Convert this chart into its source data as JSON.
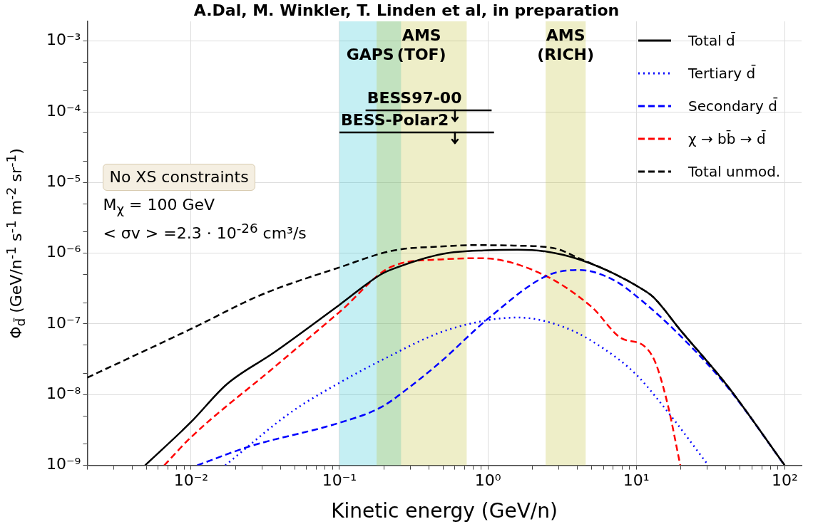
{
  "chart_data": {
    "type": "line",
    "title": "A.Dal, M. Winkler, T. Linden et al, in preparation",
    "xlabel": "Kinetic energy (GeV/n)",
    "ylabel": "Φ$_{d̄}$ (GeV/n$^{-1}$ s$^{-1}$ m$^{-2}$ sr$^{-1}$)",
    "log": "xy",
    "grid": true,
    "legend": "top right",
    "marker": "none",
    "xlim": [
      0.002,
      130
    ],
    "ylim": [
      1e-09,
      0.0019
    ],
    "xticks": [
      {
        "value": 0.002,
        "label": null
      },
      {
        "value": 0.003,
        "label": null
      },
      {
        "value": 0.004,
        "label": null
      },
      {
        "value": 0.005,
        "label": null
      },
      {
        "value": 0.006,
        "label": null
      },
      {
        "value": 0.007,
        "label": null
      },
      {
        "value": 0.008,
        "label": null
      },
      {
        "value": 0.009,
        "label": null
      },
      {
        "value": 0.01,
        "label": "10⁻²"
      },
      {
        "value": 0.02,
        "label": null
      },
      {
        "value": 0.03,
        "label": null
      },
      {
        "value": 0.04,
        "label": null
      },
      {
        "value": 0.05,
        "label": null
      },
      {
        "value": 0.06,
        "label": null
      },
      {
        "value": 0.07,
        "label": null
      },
      {
        "value": 0.08,
        "label": null
      },
      {
        "value": 0.09,
        "label": null
      },
      {
        "value": 0.1,
        "label": "10⁻¹"
      },
      {
        "value": 0.2,
        "label": null
      },
      {
        "value": 0.3,
        "label": null
      },
      {
        "value": 0.4,
        "label": null
      },
      {
        "value": 0.5,
        "label": null
      },
      {
        "value": 0.6,
        "label": null
      },
      {
        "value": 0.7,
        "label": null
      },
      {
        "value": 0.8,
        "label": null
      },
      {
        "value": 0.9,
        "label": null
      },
      {
        "value": 1,
        "label": "10⁰"
      },
      {
        "value": 2,
        "label": null
      },
      {
        "value": 3,
        "label": null
      },
      {
        "value": 4,
        "label": null
      },
      {
        "value": 5,
        "label": null
      },
      {
        "value": 6,
        "label": null
      },
      {
        "value": 7,
        "label": null
      },
      {
        "value": 8,
        "label": null
      },
      {
        "value": 9,
        "label": null
      },
      {
        "value": 10,
        "label": "10¹"
      },
      {
        "value": 20,
        "label": null
      },
      {
        "value": 30,
        "label": null
      },
      {
        "value": 40,
        "label": null
      },
      {
        "value": 50,
        "label": null
      },
      {
        "value": 60,
        "label": null
      },
      {
        "value": 70,
        "label": null
      },
      {
        "value": 80,
        "label": null
      },
      {
        "value": 90,
        "label": null
      },
      {
        "value": 100,
        "label": "10²"
      }
    ],
    "yticks": [
      {
        "value": 1e-09,
        "label": "10⁻⁹"
      },
      {
        "value": 2e-09,
        "label": null
      },
      {
        "value": 5e-09,
        "label": null
      },
      {
        "value": 1e-08,
        "label": "10⁻⁸"
      },
      {
        "value": 2e-08,
        "label": null
      },
      {
        "value": 5e-08,
        "label": null
      },
      {
        "value": 1e-07,
        "label": "10⁻⁷"
      },
      {
        "value": 2e-07,
        "label": null
      },
      {
        "value": 5e-07,
        "label": null
      },
      {
        "value": 1e-06,
        "label": "10⁻⁶"
      },
      {
        "value": 2e-06,
        "label": null
      },
      {
        "value": 5e-06,
        "label": null
      },
      {
        "value": 1e-05,
        "label": "10⁻⁵"
      },
      {
        "value": 2e-05,
        "label": null
      },
      {
        "value": 5e-05,
        "label": null
      },
      {
        "value": 0.0001,
        "label": "10⁻⁴"
      },
      {
        "value": 0.0002,
        "label": null
      },
      {
        "value": 0.0005,
        "label": null
      },
      {
        "value": 0.001,
        "label": "10⁻³"
      }
    ],
    "series": [
      {
        "name": "BESS97-00",
        "color": "#000000",
        "line_style": "solid",
        "x": [
          0.15,
          0.6,
          1.06
        ],
        "values": [
          0.000105,
          0.000105,
          0.000105
        ],
        "errors": [
          null,
          [
            7.4e-05,
            0.000105
          ],
          null
        ]
      },
      {
        "name": "BESS-Polar2",
        "color": "#000000",
        "line_style": "solid",
        "x": [
          0.1,
          0.6,
          1.1
        ],
        "values": [
          5.1e-05,
          5.1e-05,
          5.1e-05
        ],
        "errors": [
          null,
          [
            3.6e-05,
            5.1e-05
          ],
          null
        ]
      },
      {
        "name": "Total d̄",
        "color": "#000000",
        "line_style": "solid",
        "x": [
          0.0049,
          0.01,
          0.0174,
          0.036,
          0.1,
          0.19,
          0.23,
          0.5,
          1.0,
          1.59,
          2.5,
          4.1,
          7,
          10.7,
          13,
          20,
          40.9,
          100
        ],
        "values": [
          1e-09,
          4.1e-09,
          1.4e-08,
          3.9e-08,
          1.86e-07,
          5e-07,
          6e-07,
          9.8e-07,
          1.1e-06,
          1.12e-06,
          1.05e-06,
          8.2e-07,
          5.2e-07,
          3.2e-07,
          2.4e-07,
          8e-08,
          1.35e-08,
          1e-09
        ]
      },
      {
        "name": "Tertiary d̄",
        "color": "#0000ff",
        "line_style": "dotted",
        "x": [
          0.017,
          0.047,
          0.1,
          0.2,
          0.48,
          1.0,
          1.6,
          3.4,
          6,
          9.9,
          15.7,
          30.6
        ],
        "values": [
          1e-09,
          5.6e-09,
          1.47e-08,
          3.2e-08,
          7.6e-08,
          1.13e-07,
          1.23e-07,
          8.7e-08,
          4.5e-08,
          1.96e-08,
          6.3e-09,
          1e-09
        ]
      },
      {
        "name": "Secondary d̄",
        "color": "#0000ff",
        "line_style": "dashed",
        "x": [
          0.011,
          0.025,
          0.1,
          0.19,
          0.3,
          0.48,
          1.0,
          2.5,
          4.1,
          7,
          10.7,
          19,
          40.9,
          100
        ],
        "values": [
          1e-09,
          1.86e-09,
          4e-09,
          6.6e-09,
          1.3e-08,
          2.9e-08,
          1.18e-07,
          4.8e-07,
          5.8e-07,
          4.2e-07,
          2.2e-07,
          7.4e-08,
          1.3e-08,
          1e-09
        ]
      },
      {
        "name": "χ → bb̄ → d̄",
        "color": "#ff0000",
        "line_style": "dashed",
        "x": [
          0.0066,
          0.01,
          0.036,
          0.1,
          0.23,
          0.5,
          0.9,
          2.3,
          5,
          7.9,
          11.1,
          13.4,
          16.3,
          19.8
        ],
        "values": [
          1e-09,
          2.5e-09,
          2.4e-08,
          1.47e-07,
          6.6e-07,
          8.2e-07,
          8.5e-07,
          5.1e-07,
          1.74e-07,
          6.3e-08,
          5e-08,
          2.9e-08,
          7.2e-09,
          1e-09
        ]
      },
      {
        "name": "Total unmod.",
        "color": "#000000",
        "line_style": "dashed",
        "x": [
          0.002,
          0.01,
          0.03,
          0.1,
          0.23,
          0.5,
          0.8,
          1.5,
          2.83,
          4.1,
          7,
          10.7,
          13,
          20,
          40.9,
          100
        ],
        "values": [
          1.74e-08,
          8.5e-08,
          2.6e-07,
          6.3e-07,
          1.09e-06,
          1.25e-06,
          1.3e-06,
          1.28e-06,
          1.17e-06,
          8.5e-07,
          5.2e-07,
          3.2e-07,
          2.4e-07,
          8e-08,
          1.35e-08,
          1e-09
        ]
      }
    ],
    "bands": [
      {
        "axis": "x",
        "from": 0.1,
        "to": 0.26,
        "label": "GAPS",
        "color": "#17becf"
      },
      {
        "axis": "x",
        "from": 0.178,
        "to": 0.72,
        "label": "AMS\n(TOF)",
        "color": "#bcbd22"
      },
      {
        "axis": "x",
        "from": 2.45,
        "to": 4.56,
        "label": "AMS\n(RICH)",
        "color": "#bcbd22"
      }
    ],
    "annotations": [
      "No XS constraints",
      "M$_{χ}$ = 100 GeV",
      "< σv > =2.3 · 10$^{-26}$ cm³/s"
    ]
  }
}
